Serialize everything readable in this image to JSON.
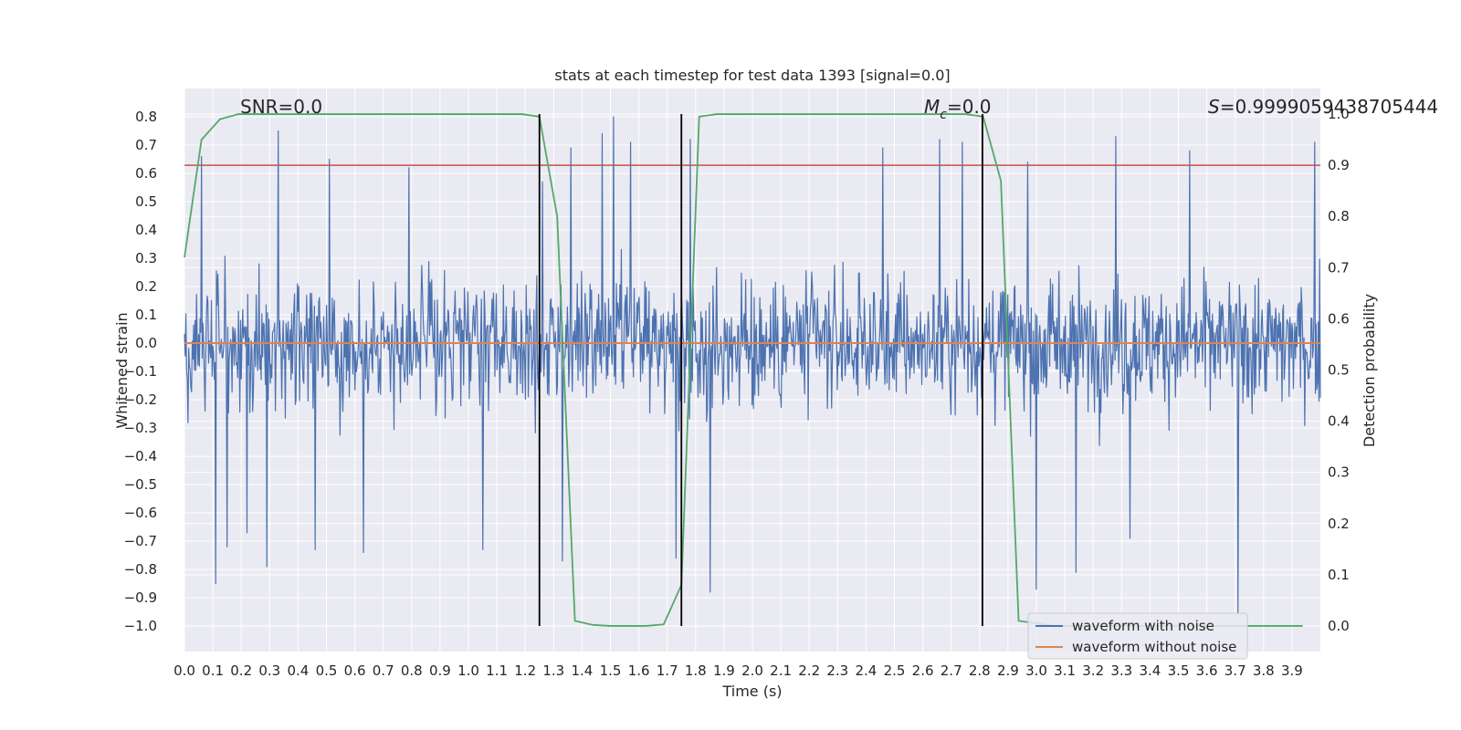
{
  "chart_data": {
    "type": "line",
    "title": "stats at each timestep for test data 1393 [signal=0.0]",
    "xlabel": "Time (s)",
    "ylabel": "Whitened strain",
    "y2label": "Detection probability",
    "xlim": [
      0.0,
      4.0
    ],
    "ylim": [
      -1.09,
      0.9
    ],
    "y2lim": [
      -0.05,
      1.05
    ],
    "grid": true,
    "x_ticks": [
      "0.0",
      "0.1",
      "0.2",
      "0.3",
      "0.4",
      "0.5",
      "0.6",
      "0.7",
      "0.8",
      "0.9",
      "1.0",
      "1.1",
      "1.2",
      "1.3",
      "1.4",
      "1.5",
      "1.6",
      "1.7",
      "1.8",
      "1.9",
      "2.0",
      "2.1",
      "2.2",
      "2.3",
      "2.4",
      "2.5",
      "2.6",
      "2.7",
      "2.8",
      "2.9",
      "3.0",
      "3.1",
      "3.2",
      "3.3",
      "3.4",
      "3.5",
      "3.6",
      "3.7",
      "3.8",
      "3.9"
    ],
    "y_ticks": [
      "0.8",
      "0.7",
      "0.6",
      "0.5",
      "0.4",
      "0.3",
      "0.2",
      "0.1",
      "0.0",
      "−0.1",
      "−0.2",
      "−0.3",
      "−0.4",
      "−0.5",
      "−0.6",
      "−0.7",
      "−0.8",
      "−0.9",
      "−1.0"
    ],
    "y2_ticks": [
      "1.0",
      "0.9",
      "0.8",
      "0.7",
      "0.6",
      "0.5",
      "0.4",
      "0.3",
      "0.2",
      "0.1",
      "0.0"
    ],
    "annotations": {
      "snr": "SNR=0.0",
      "mc_symbol": "M",
      "mc_sub": "c",
      "mc_value": "=0.0",
      "s_symbol": "S",
      "s_value": "=0.9999059438705444"
    },
    "threshold": {
      "value": 0.9,
      "axis": "y2",
      "color": "#c44e52"
    },
    "vertical_markers": [
      1.25,
      1.75,
      2.81
    ],
    "series": [
      {
        "name": "waveform with noise",
        "axis": "y",
        "color": "#4c72b0",
        "kind": "noise",
        "spikes": [
          [
            0.06,
            0.66
          ],
          [
            0.11,
            -0.85
          ],
          [
            0.15,
            -0.72
          ],
          [
            0.22,
            -0.67
          ],
          [
            0.29,
            -0.79
          ],
          [
            0.33,
            0.75
          ],
          [
            0.46,
            -0.73
          ],
          [
            0.51,
            0.65
          ],
          [
            0.63,
            -0.74
          ],
          [
            0.79,
            0.62
          ],
          [
            1.05,
            -0.73
          ],
          [
            1.26,
            0.57
          ],
          [
            1.3,
            0.0
          ],
          [
            1.33,
            -0.77
          ],
          [
            1.36,
            0.69
          ],
          [
            1.47,
            0.74
          ],
          [
            1.51,
            0.8
          ],
          [
            1.57,
            0.71
          ],
          [
            1.73,
            -0.76
          ],
          [
            1.78,
            0.72
          ],
          [
            1.85,
            -0.88
          ],
          [
            2.46,
            0.69
          ],
          [
            2.66,
            0.72
          ],
          [
            2.74,
            0.71
          ],
          [
            2.97,
            0.64
          ],
          [
            3.0,
            -0.87
          ],
          [
            3.14,
            -0.81
          ],
          [
            3.28,
            0.73
          ],
          [
            3.33,
            -0.69
          ],
          [
            3.54,
            0.68
          ],
          [
            3.71,
            -0.96
          ],
          [
            3.98,
            0.71
          ]
        ]
      },
      {
        "name": "waveform without noise",
        "axis": "y",
        "color": "#dd8452",
        "x": [
          0.0,
          4.0
        ],
        "y": [
          0.0,
          0.0
        ]
      },
      {
        "name": "detection probability",
        "axis": "y2",
        "color": "#55a868",
        "x": [
          0.0,
          0.06,
          0.125,
          0.19,
          0.25,
          0.3125,
          0.375,
          0.4375,
          0.5,
          0.5625,
          0.625,
          0.6875,
          0.75,
          0.8125,
          0.875,
          0.9375,
          1.0,
          1.0625,
          1.125,
          1.1875,
          1.25,
          1.3125,
          1.375,
          1.4375,
          1.5,
          1.5625,
          1.625,
          1.6875,
          1.75,
          1.8125,
          1.875,
          1.9375,
          2.0,
          2.0625,
          2.125,
          2.1875,
          2.25,
          2.3125,
          2.375,
          2.4375,
          2.5,
          2.5625,
          2.625,
          2.6875,
          2.75,
          2.8125,
          2.875,
          2.9375,
          3.0,
          3.0625,
          3.125,
          3.1875,
          3.25,
          3.3125,
          3.375,
          3.4375,
          3.5,
          3.5625,
          3.625,
          3.6875,
          3.75,
          3.8125,
          3.875,
          3.9375
        ],
        "y": [
          0.72,
          0.95,
          0.99,
          1.0,
          1.0,
          1.0,
          1.0,
          1.0,
          1.0,
          1.0,
          1.0,
          1.0,
          1.0,
          1.0,
          1.0,
          1.0,
          1.0,
          1.0,
          1.0,
          1.0,
          0.995,
          0.8,
          0.01,
          0.002,
          0.0,
          0.0,
          0.0,
          0.003,
          0.08,
          0.995,
          1.0,
          1.0,
          1.0,
          1.0,
          1.0,
          1.0,
          1.0,
          1.0,
          1.0,
          1.0,
          1.0,
          1.0,
          1.0,
          1.0,
          1.0,
          0.995,
          0.87,
          0.01,
          0.005,
          0.0,
          0.0,
          0.0,
          0.0,
          0.0,
          0.0,
          0.0,
          0.0,
          0.0,
          0.0,
          0.0,
          0.0,
          0.0,
          0.0,
          0.0
        ]
      }
    ],
    "legend": {
      "placement": "bottom-right",
      "entries": [
        {
          "label": "waveform with noise",
          "color": "#4c72b0"
        },
        {
          "label": "waveform without noise",
          "color": "#dd8452"
        }
      ]
    }
  }
}
